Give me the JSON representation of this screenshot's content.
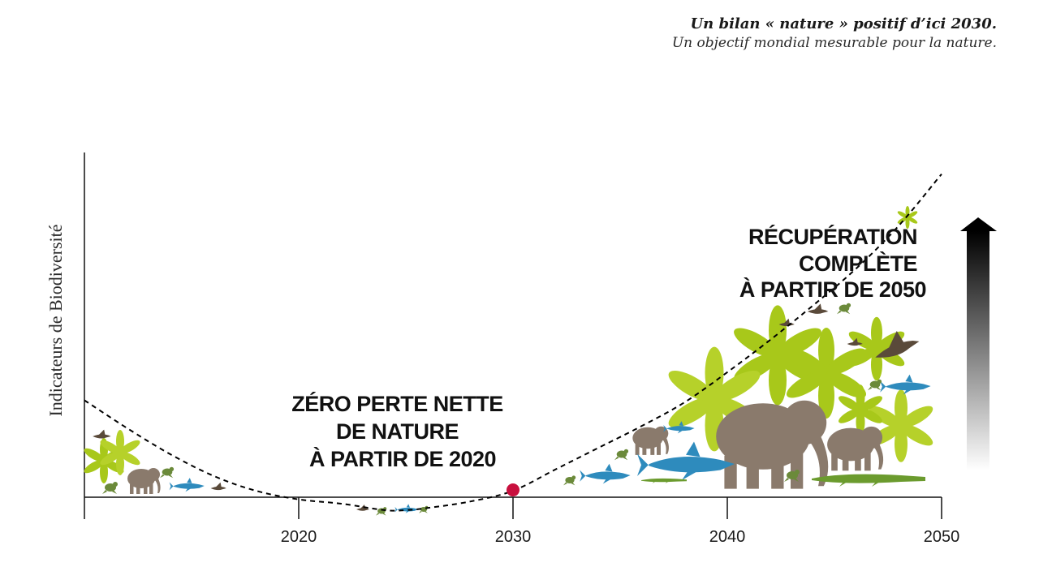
{
  "header": {
    "title": "Un bilan « nature » positif d’ici 2030.",
    "subtitle": "Un objectif mondial mesurable pour la nature."
  },
  "chart_data": {
    "type": "line",
    "title": "Un bilan « nature » positif d’ici 2030.",
    "subtitle": "Un objectif mondial mesurable pour la nature.",
    "xlabel": "",
    "ylabel": "Indicateurs de Biodiversité",
    "x_ticks": [
      "2020",
      "2030",
      "2040",
      "2050"
    ],
    "xlim": [
      2010,
      2050
    ],
    "ylim": [
      -1,
      16
    ],
    "series": [
      {
        "x": [
          2010,
          2012,
          2014,
          2016,
          2018,
          2020,
          2022,
          2024,
          2025,
          2026,
          2028,
          2030,
          2032,
          2034,
          2036,
          2038,
          2040,
          2042,
          2044,
          2046,
          2048,
          2050
        ],
        "y": [
          4.5,
          3.2,
          2.0,
          1.0,
          0.3,
          -0.1,
          -0.3,
          -0.6,
          -0.6,
          -0.5,
          -0.2,
          0.3,
          1.3,
          2.3,
          3.3,
          4.4,
          5.8,
          7.3,
          8.9,
          10.6,
          12.6,
          15.0
        ],
        "style": "dashed",
        "color": "#000000"
      }
    ],
    "marker": {
      "x": 2030,
      "y": 0.3,
      "color": "#c8103e"
    },
    "annotations": [
      {
        "lines": [
          "ZÉRO PERTE NETTE",
          "DE NATURE",
          "À PARTIR DE 2020"
        ]
      },
      {
        "lines": [
          "RÉCUPÉRATION",
          "COMPLÈTE",
          "À PARTIR DE 2050"
        ]
      }
    ],
    "arrow": {
      "direction": "up",
      "gradient": [
        "#000000",
        "#ffffff"
      ]
    },
    "colors": {
      "leaf": "#a8c81a",
      "animal": "#8a7a6c",
      "shark": "#2e8bbd",
      "croc": "#6b9b2e",
      "bird": "#5a4a3a"
    },
    "grid": false,
    "legend": "none"
  }
}
